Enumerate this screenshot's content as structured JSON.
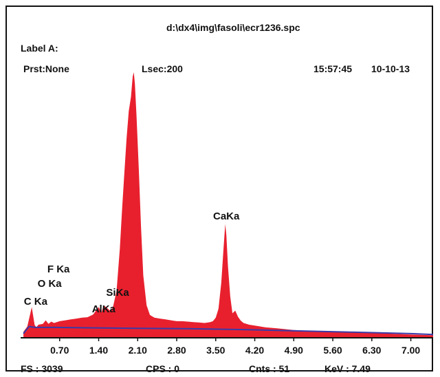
{
  "header": {
    "file_path": "d:\\dx4\\img\\fasoli\\ecr1236.spc",
    "label": "Label A:",
    "preset": "Prst:None",
    "lsec": "Lsec:200",
    "time": "15:57:45",
    "date": "10-10-13"
  },
  "footer": {
    "fs": "FS : 3039",
    "cps": "CPS : 0",
    "cnts": "Cnts : 51",
    "kev": "KeV : 7.49"
  },
  "colors": {
    "spectrum_fill": "#e8202e",
    "background_line": "#3a3aa8",
    "axis": "#111111"
  },
  "chart_data": {
    "type": "area",
    "title": "",
    "xlabel": "",
    "ylabel": "",
    "xlim": [
      0.0,
      7.4
    ],
    "ylim": [
      0,
      3039
    ],
    "x_ticks": [
      "0.70",
      "1.40",
      "2.10",
      "2.80",
      "3.50",
      "4.20",
      "4.90",
      "5.60",
      "6.30",
      "7.00"
    ],
    "x_tick_values": [
      0.7,
      1.4,
      2.1,
      2.8,
      3.5,
      4.2,
      4.9,
      5.6,
      6.3,
      7.0
    ],
    "series": [
      {
        "x": [
          0.05,
          0.12,
          0.2,
          0.25,
          0.28,
          0.32,
          0.4,
          0.45,
          0.5,
          0.55,
          0.6,
          0.7,
          0.8,
          0.9,
          1.0,
          1.1,
          1.2,
          1.3,
          1.4,
          1.45,
          1.49,
          1.55,
          1.62,
          1.66,
          1.72,
          1.78,
          1.82,
          1.86,
          1.9,
          1.94,
          1.98,
          2.01,
          2.03,
          2.05,
          2.08,
          2.12,
          2.16,
          2.2,
          2.26,
          2.32,
          2.4,
          2.5,
          2.6,
          2.7,
          2.8,
          2.9,
          3.0,
          3.1,
          3.2,
          3.3,
          3.4,
          3.45,
          3.5,
          3.55,
          3.6,
          3.64,
          3.67,
          3.69,
          3.72,
          3.76,
          3.8,
          3.85,
          3.9,
          3.95,
          4.0,
          4.05,
          4.1,
          4.2,
          4.4,
          4.6,
          4.9,
          5.2,
          5.6,
          6.0,
          6.3,
          6.6,
          7.0,
          7.4
        ],
        "values": [
          60,
          120,
          340,
          140,
          110,
          140,
          150,
          190,
          150,
          175,
          160,
          180,
          190,
          200,
          210,
          220,
          225,
          255,
          340,
          280,
          360,
          330,
          290,
          350,
          520,
          1000,
          1450,
          1850,
          2250,
          2560,
          2720,
          2950,
          3000,
          2870,
          2500,
          1900,
          1250,
          700,
          360,
          250,
          220,
          210,
          200,
          190,
          180,
          180,
          175,
          170,
          165,
          160,
          170,
          180,
          220,
          320,
          620,
          1000,
          1280,
          1160,
          800,
          460,
          270,
          300,
          230,
          185,
          160,
          150,
          140,
          130,
          110,
          100,
          80,
          70,
          60,
          55,
          50,
          40,
          30,
          20
        ]
      }
    ],
    "background": {
      "x": [
        0.05,
        0.15,
        0.25,
        0.6,
        1.2,
        2.1,
        3.0,
        4.0,
        5.0,
        6.0,
        7.0,
        7.4
      ],
      "values": [
        40,
        120,
        110,
        110,
        105,
        100,
        95,
        85,
        70,
        55,
        40,
        30
      ]
    },
    "annotations": [
      {
        "text": "C Ka",
        "x": 0.27
      },
      {
        "text": "O Ka",
        "x": 0.52
      },
      {
        "text": "F Ka",
        "x": 0.68
      },
      {
        "text": "AlKa",
        "x": 1.49
      },
      {
        "text": "SiKa",
        "x": 1.74
      },
      {
        "text": "CaKa",
        "x": 3.69
      }
    ]
  }
}
